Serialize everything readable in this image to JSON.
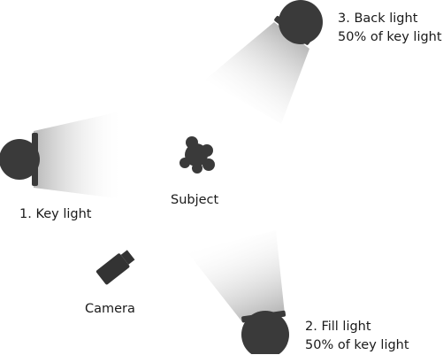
{
  "lights": {
    "key": {
      "label": "1. Key light"
    },
    "back": {
      "label": "3. Back light",
      "sublabel": "50% of key light"
    },
    "fill": {
      "label": "2. Fill light",
      "sublabel": "50% of key light"
    }
  },
  "subject": {
    "label": "Subject"
  },
  "camera": {
    "label": "Camera"
  },
  "colors": {
    "lamp": "#3a3a3a",
    "camera": "#333333",
    "subject": "#3a3a3a",
    "beam_near": "#b8b8b8",
    "beam_far": "#ffffff",
    "text": "#1a1a1a"
  }
}
